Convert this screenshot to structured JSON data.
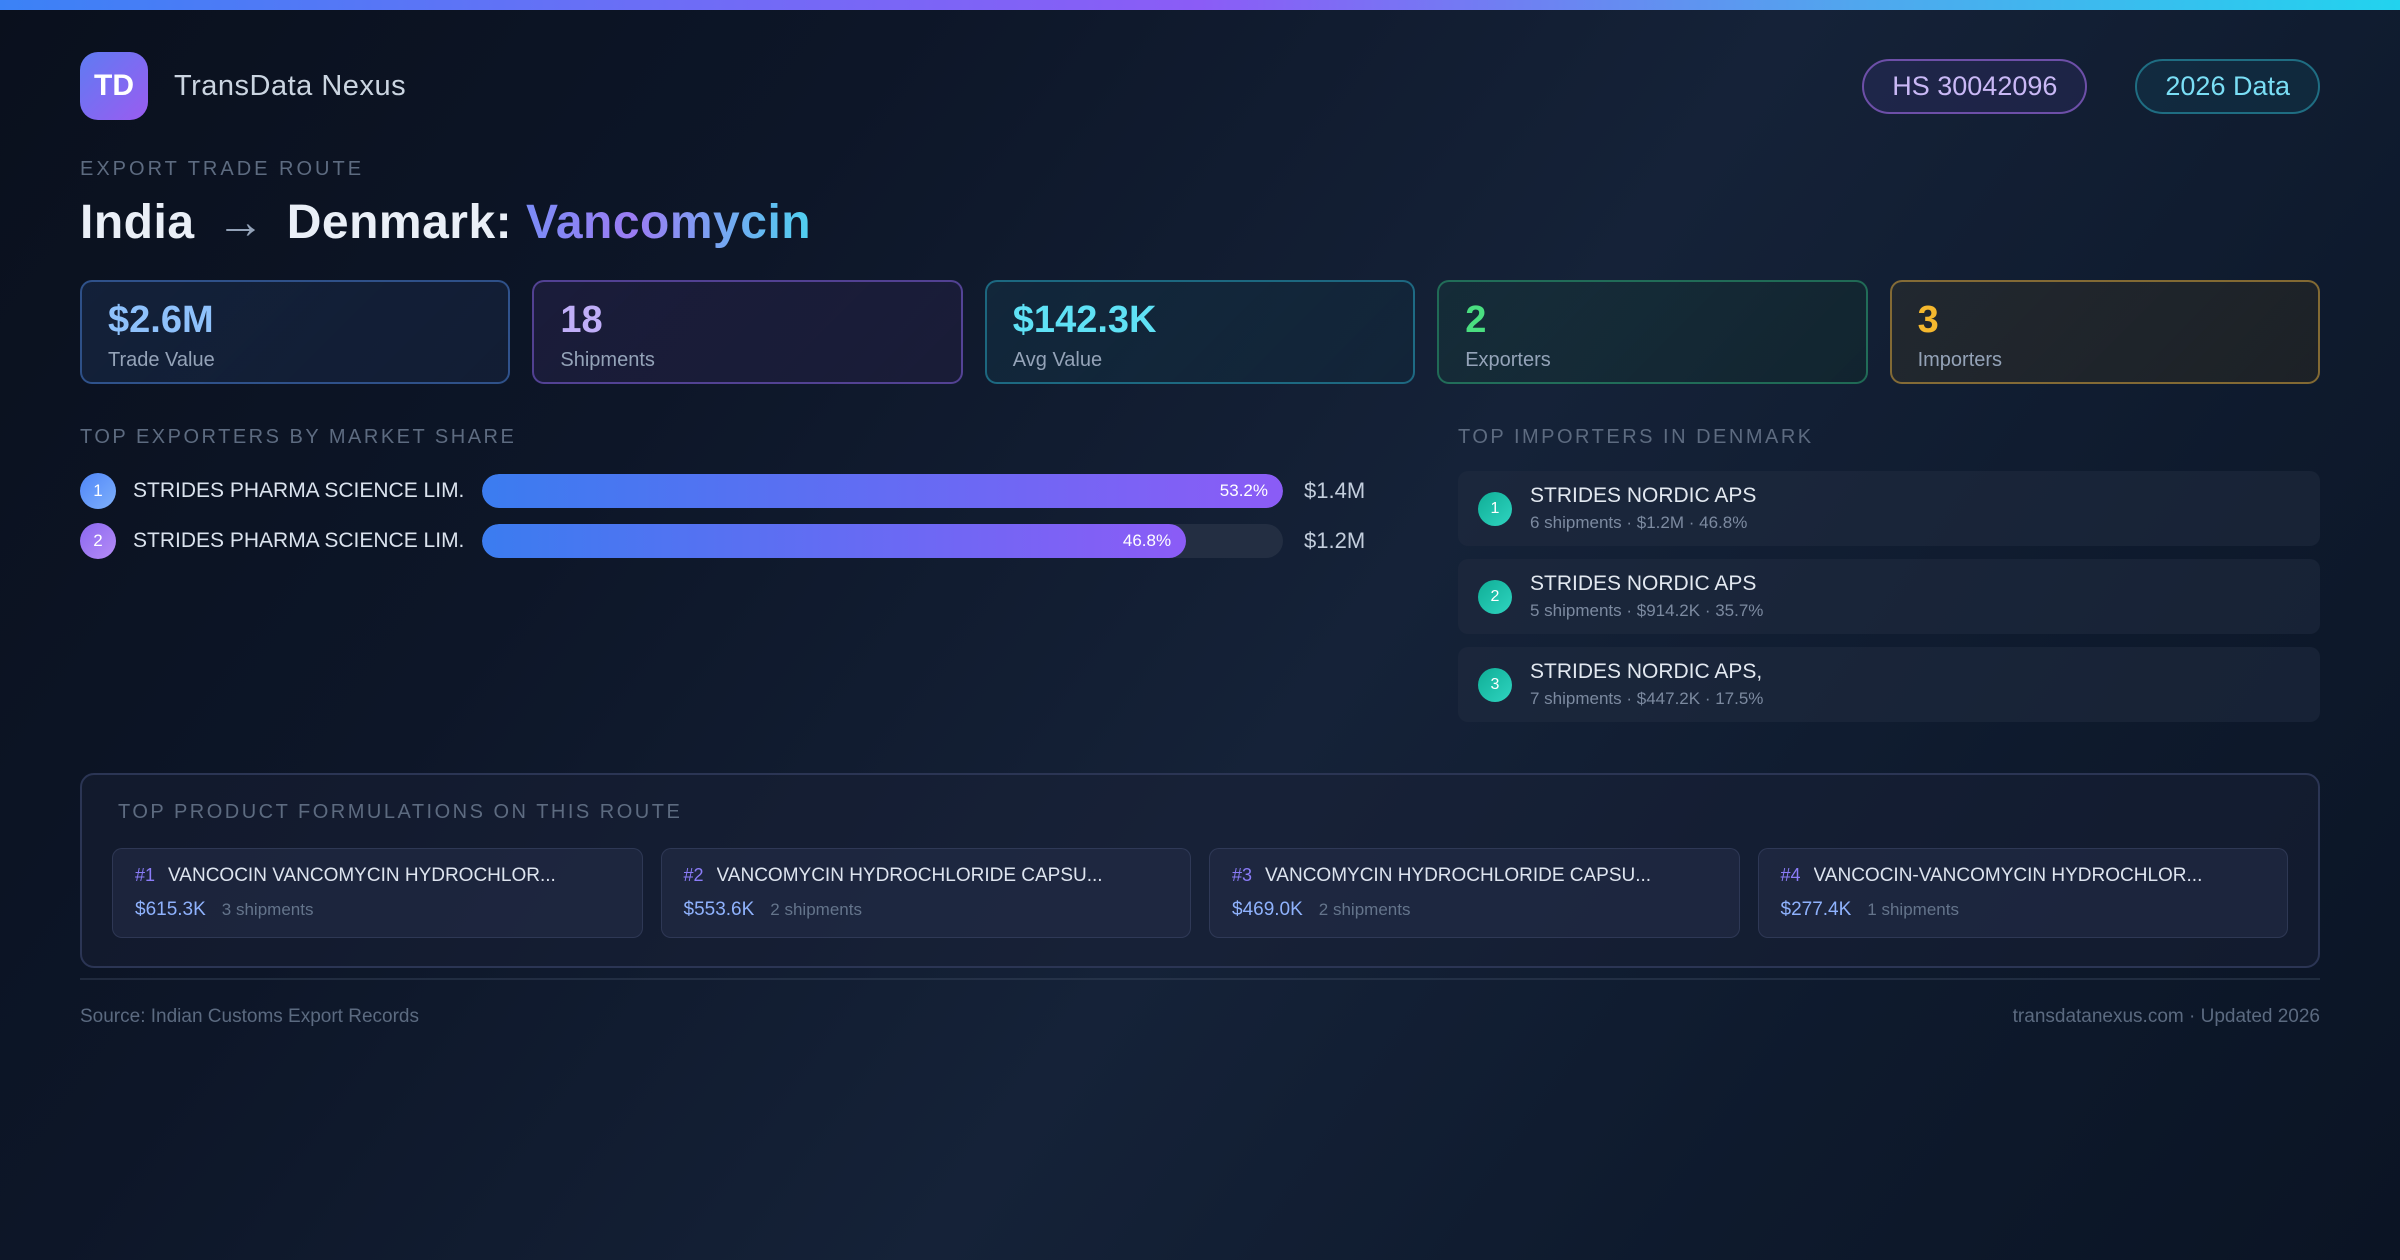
{
  "header": {
    "logo_text": "TD",
    "app_name": "TransData Nexus",
    "hs_badge": "HS 30042096",
    "year_badge": "2026 Data"
  },
  "hero": {
    "eyebrow": "EXPORT TRADE ROUTE",
    "title_from": "India",
    "title_arrow": "→",
    "title_to": "Denmark:",
    "title_highlight": "Vancomycin"
  },
  "stats": [
    {
      "value": "$2.6M",
      "label": "Trade Value"
    },
    {
      "value": "18",
      "label": "Shipments"
    },
    {
      "value": "$142.3K",
      "label": "Avg Value"
    },
    {
      "value": "2",
      "label": "Exporters"
    },
    {
      "value": "3",
      "label": "Importers"
    }
  ],
  "exporters": {
    "heading": "TOP EXPORTERS BY MARKET SHARE",
    "rows": [
      {
        "rank": "1",
        "name": "STRIDES PHARMA SCIENCE LIM...",
        "percent": "53.2%",
        "value": "$1.4M",
        "bar_style": "width:100%"
      },
      {
        "rank": "2",
        "name": "STRIDES PHARMA SCIENCE LIM...",
        "percent": "46.8%",
        "value": "$1.2M",
        "bar_style": "width:87.9%"
      }
    ]
  },
  "importers": {
    "heading": "TOP IMPORTERS IN DENMARK",
    "rows": [
      {
        "rank": "1",
        "name": "STRIDES NORDIC APS",
        "meta": "6 shipments · $1.2M · 46.8%"
      },
      {
        "rank": "2",
        "name": "STRIDES NORDIC APS",
        "meta": "5 shipments · $914.2K · 35.7%"
      },
      {
        "rank": "3",
        "name": "STRIDES NORDIC APS,",
        "meta": "7 shipments · $447.2K · 17.5%"
      }
    ]
  },
  "formulations": {
    "heading": "TOP PRODUCT FORMULATIONS ON THIS ROUTE",
    "cards": [
      {
        "rank": "#1",
        "name": "VANCOCIN VANCOMYCIN HYDROCHLOR...",
        "value": "$615.3K",
        "shipments": "3 shipments"
      },
      {
        "rank": "#2",
        "name": "VANCOMYCIN HYDROCHLORIDE CAPSU...",
        "value": "$553.6K",
        "shipments": "2 shipments"
      },
      {
        "rank": "#3",
        "name": "VANCOMYCIN HYDROCHLORIDE CAPSU...",
        "value": "$469.0K",
        "shipments": "2 shipments"
      },
      {
        "rank": "#4",
        "name": "VANCOCIN-VANCOMYCIN HYDROCHLOR...",
        "value": "$277.4K",
        "shipments": "1 shipments"
      }
    ]
  },
  "footer": {
    "source": "Source: Indian Customs Export Records",
    "site": "transdatanexus.com · Updated 2026"
  },
  "colors": {
    "topbar_gradient": [
      "#3b82f6",
      "#8b5cf6",
      "#22d3ee"
    ],
    "bar_gradient": [
      "#3b7cf0",
      "#8b5cf6"
    ],
    "stat_accents": [
      "#8ec1fb",
      "#c0aef8",
      "#5fe1f5",
      "#4ade80",
      "#f5b82e"
    ],
    "importer_badge": "#2fd4c0",
    "title_highlight_gradient": [
      "#7b8cf6",
      "#9b7cf3",
      "#4fd0f0"
    ]
  }
}
